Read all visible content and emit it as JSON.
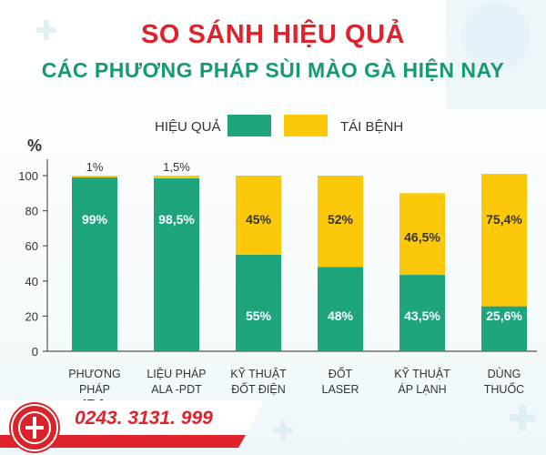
{
  "header": {
    "title": "SO SÁNH HIỆU QUẢ",
    "subtitle": "CÁC PHƯƠNG PHÁP SÙI MÀO GÀ HIỆN NAY"
  },
  "footer": {
    "phone": "0243. 3131. 999"
  },
  "chart_data": {
    "type": "bar",
    "stacked": true,
    "ylabel": "%",
    "ylim": [
      0,
      100
    ],
    "yticks": [
      0,
      20,
      40,
      60,
      80,
      100
    ],
    "grid": false,
    "legend_position": "top",
    "categories": [
      [
        "PHƯƠNG",
        "PHÁP",
        "IRA"
      ],
      [
        "LIỆU PHÁP",
        "ALA -PDT"
      ],
      [
        "KỸ THUẬT",
        "ĐỐT ĐIỆN"
      ],
      [
        "ĐỐT",
        "LASER"
      ],
      [
        "KỸ THUẬT",
        "ÁP LẠNH"
      ],
      [
        "DÙNG",
        "THUỐC"
      ]
    ],
    "series": [
      {
        "name": "HIỆU QUẢ",
        "color": "#1fa57e",
        "values": [
          99,
          98.5,
          55,
          48,
          43.5,
          25.6
        ],
        "labels": [
          "99%",
          "98,5%",
          "55%",
          "48%",
          "43,5%",
          "25,6%"
        ]
      },
      {
        "name": "TÁI BỆNH",
        "color": "#fcc90a",
        "values": [
          1,
          1.5,
          45,
          52,
          46.5,
          75.4
        ],
        "labels": [
          "1%",
          "1,5%",
          "45%",
          "52%",
          "46,5%",
          "75,4%"
        ]
      }
    ]
  }
}
